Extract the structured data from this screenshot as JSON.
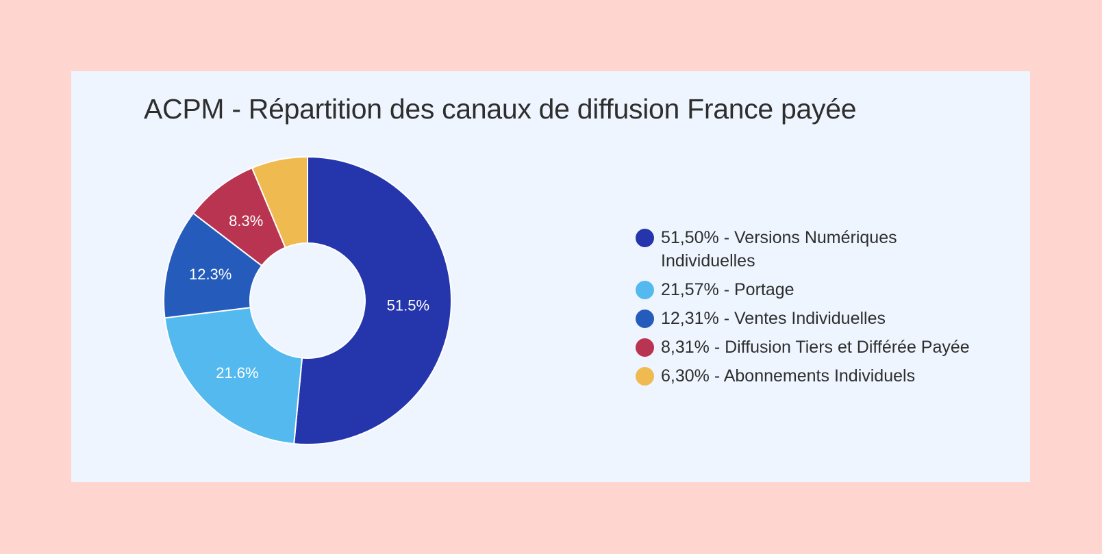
{
  "chart_data": {
    "type": "pie",
    "title": "ACPM - Répartition des canaux de diffusion France payée",
    "donut": true,
    "slices": [
      {
        "label": "51,50% - Versions Numériques Individuelles",
        "value": 51.5,
        "data_label": "51.5%",
        "color": "#2535AC"
      },
      {
        "label": "21,57% - Portage",
        "value": 21.57,
        "data_label": "21.6%",
        "color": "#54B9EF"
      },
      {
        "label": "12,31% - Ventes Individuelles",
        "value": 12.31,
        "data_label": "12.3%",
        "color": "#255CBB"
      },
      {
        "label": "8,31% - Diffusion Tiers et Différée Payée",
        "value": 8.31,
        "data_label": "8.3%",
        "color": "#B93450"
      },
      {
        "label": "6,30% - Abonnements Individuels",
        "value": 6.3,
        "data_label": "",
        "color": "#EFBA4F"
      }
    ],
    "legend_position": "right"
  }
}
